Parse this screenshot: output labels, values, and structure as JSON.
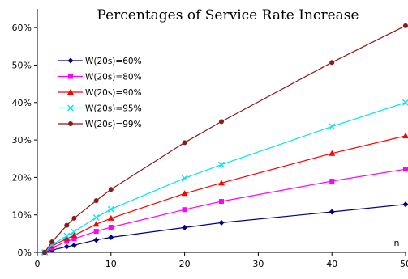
{
  "chart_data": {
    "type": "line",
    "title": "Percentages of Service Rate Increase",
    "xlabel": "n",
    "ylabel": "",
    "xlim": [
      0,
      50
    ],
    "ylim": [
      0,
      0.65
    ],
    "x_ticks": [
      0,
      10,
      20,
      30,
      40,
      50
    ],
    "x_tick_labels": [
      "0",
      "10",
      "20",
      "30",
      "40",
      "50"
    ],
    "y_ticks": [
      0,
      0.1,
      0.2,
      0.3,
      0.4,
      0.5,
      0.6
    ],
    "y_tick_labels": [
      "0%",
      "10%",
      "20%",
      "30%",
      "40%",
      "50%",
      "60%"
    ],
    "grid": false,
    "legend_position": "upper-left",
    "series": [
      {
        "name": "W(20s)=60%",
        "color": "#000080",
        "marker": "diamond",
        "x": [
          1,
          2,
          4,
          5,
          8,
          10,
          20,
          25,
          40,
          50
        ],
        "y": [
          0.0,
          0.006,
          0.015,
          0.019,
          0.033,
          0.04,
          0.066,
          0.079,
          0.108,
          0.128
        ]
      },
      {
        "name": "W(20s)=80%",
        "color": "#FF00FF",
        "marker": "square",
        "x": [
          1,
          2,
          4,
          5,
          8,
          10,
          20,
          25,
          40,
          50
        ],
        "y": [
          0.0,
          0.012,
          0.029,
          0.036,
          0.056,
          0.067,
          0.114,
          0.136,
          0.19,
          0.222
        ]
      },
      {
        "name": "W(20s)=90%",
        "color": "#FF0000",
        "marker": "triangle",
        "x": [
          1,
          2,
          4,
          5,
          8,
          10,
          20,
          25,
          40,
          50
        ],
        "y": [
          0.0,
          0.017,
          0.037,
          0.045,
          0.075,
          0.091,
          0.157,
          0.185,
          0.264,
          0.311
        ]
      },
      {
        "name": "W(20s)=95%",
        "color": "#00E5EE",
        "marker": "x",
        "x": [
          1,
          2,
          4,
          5,
          8,
          10,
          20,
          25,
          40,
          50
        ],
        "y": [
          0.0,
          0.02,
          0.044,
          0.055,
          0.093,
          0.115,
          0.198,
          0.234,
          0.336,
          0.4
        ]
      },
      {
        "name": "W(20s)=99%",
        "color": "#8B1A1A",
        "marker": "circle",
        "x": [
          1,
          2,
          4,
          5,
          8,
          10,
          20,
          25,
          40,
          50
        ],
        "y": [
          0.0,
          0.028,
          0.072,
          0.091,
          0.138,
          0.168,
          0.293,
          0.349,
          0.507,
          0.605
        ]
      }
    ]
  }
}
